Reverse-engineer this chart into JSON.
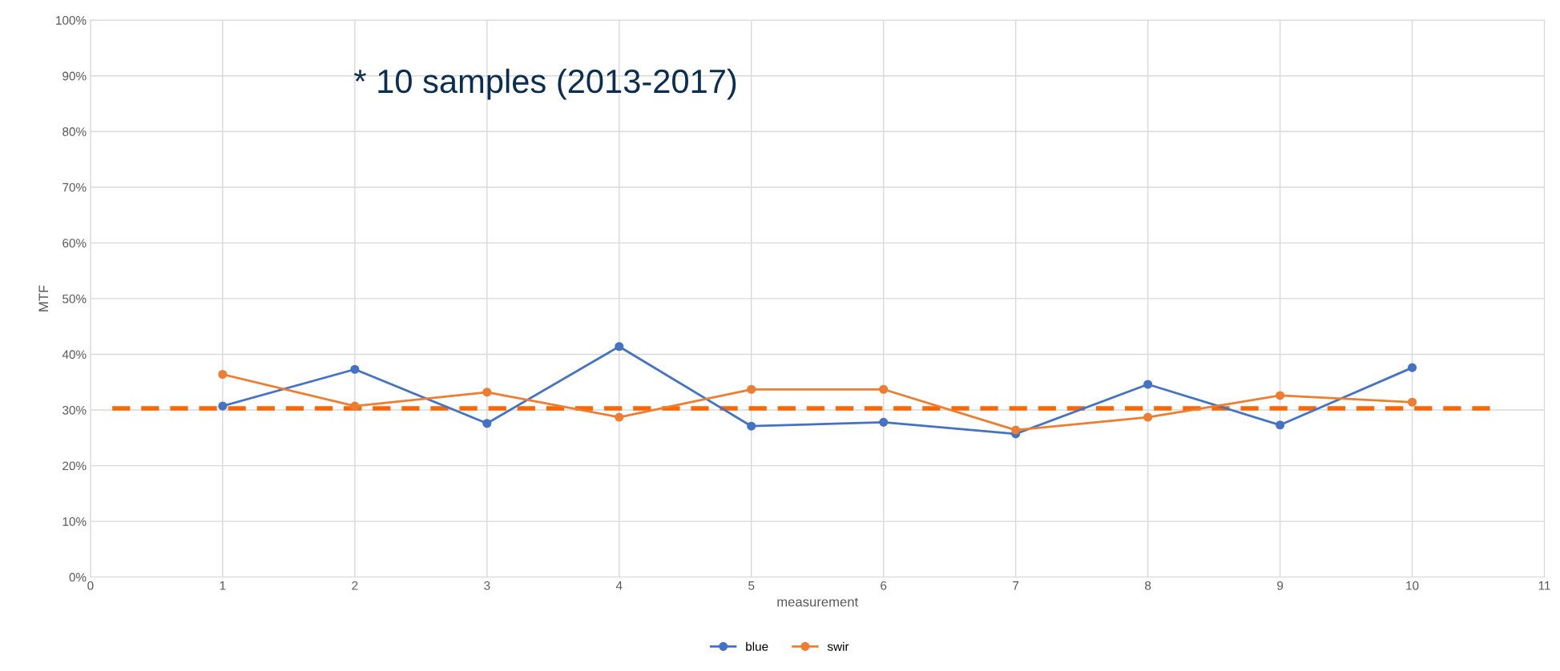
{
  "chart_data": {
    "type": "line",
    "xlabel": "measurement",
    "ylabel": "MTF",
    "x": [
      1,
      2,
      3,
      4,
      5,
      6,
      7,
      8,
      9,
      10
    ],
    "series": [
      {
        "name": "blue",
        "color": "#4472c4",
        "values": [
          30.7,
          37.3,
          27.6,
          41.4,
          27.1,
          27.8,
          25.7,
          34.6,
          27.3,
          37.6
        ]
      },
      {
        "name": "swir",
        "color": "#ed7d31",
        "values": [
          36.4,
          30.7,
          33.2,
          28.7,
          33.7,
          33.7,
          26.4,
          28.7,
          32.6,
          31.4
        ]
      }
    ],
    "xlim": [
      0,
      11
    ],
    "xticks": [
      0,
      1,
      2,
      3,
      4,
      5,
      6,
      7,
      8,
      9,
      10,
      11
    ],
    "ylim": [
      0,
      100
    ],
    "yticks": [
      {
        "value": 0,
        "label": "0%"
      },
      {
        "value": 10,
        "label": "10%"
      },
      {
        "value": 20,
        "label": "20%"
      },
      {
        "value": 30,
        "label": "30%"
      },
      {
        "value": 40,
        "label": "40%"
      },
      {
        "value": 50,
        "label": "50%"
      },
      {
        "value": 60,
        "label": "60%"
      },
      {
        "value": 70,
        "label": "70%"
      },
      {
        "value": 80,
        "label": "80%"
      },
      {
        "value": 90,
        "label": "90%"
      },
      {
        "value": 100,
        "label": "100%"
      }
    ],
    "ref_lines": [
      {
        "axis": "y",
        "value": 30.3,
        "color": "#ff6600",
        "line_style": "dashed"
      }
    ],
    "annotations": [
      "* 10 samples (2013-2017)"
    ],
    "grid": true,
    "legend": "bottom",
    "marker": "circle",
    "line_style": "solid"
  }
}
